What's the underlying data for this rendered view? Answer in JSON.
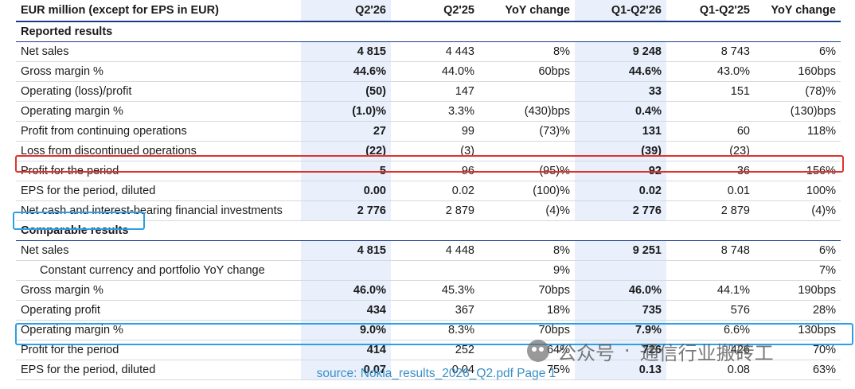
{
  "header": {
    "label": "EUR million (except for EPS in EUR)",
    "columns": [
      "Q2'26",
      "Q2'25",
      "YoY change",
      "Q1-Q2'26",
      "Q1-Q2'25",
      "YoY change"
    ]
  },
  "reported": {
    "title": "Reported results",
    "rows": [
      {
        "label": "Net sales",
        "values": [
          "4 815",
          "4 443",
          "8%",
          "9 248",
          "8 743",
          "6%"
        ]
      },
      {
        "label": "Gross margin %",
        "values": [
          "44.6%",
          "44.0%",
          "60bps",
          "44.6%",
          "43.0%",
          "160bps"
        ]
      },
      {
        "label": "Operating (loss)/profit",
        "values": [
          "(50)",
          "147",
          "",
          "33",
          "151",
          "(78)%"
        ]
      },
      {
        "label": "Operating margin %",
        "values": [
          "(1.0)%",
          "3.3%",
          "(430)bps",
          "0.4%",
          "",
          "(130)bps"
        ]
      },
      {
        "label": "Profit from continuing operations",
        "values": [
          "27",
          "99",
          "(73)%",
          "131",
          "60",
          "118%"
        ]
      },
      {
        "label": "Loss from discontinued operations",
        "values": [
          "(22)",
          "(3)",
          "",
          "(39)",
          "(23)",
          ""
        ]
      },
      {
        "label": "Profit for the period",
        "values": [
          "5",
          "96",
          "(95)%",
          "92",
          "36",
          "156%"
        ]
      },
      {
        "label": "EPS for the period, diluted",
        "values": [
          "0.00",
          "0.02",
          "(100)%",
          "0.02",
          "0.01",
          "100%"
        ]
      },
      {
        "label": "Net cash and interest-bearing financial investments",
        "values": [
          "2 776",
          "2 879",
          "(4)%",
          "2 776",
          "2 879",
          "(4)%"
        ]
      }
    ]
  },
  "comparable": {
    "title": "Comparable results",
    "rows": [
      {
        "label": "Net sales",
        "values": [
          "4 815",
          "4 448",
          "8%",
          "9 251",
          "8 748",
          "6%"
        ]
      },
      {
        "label": "Constant currency and portfolio YoY change",
        "values": [
          "",
          "",
          "9%",
          "",
          "",
          "7%"
        ],
        "indent": true
      },
      {
        "label": "Gross margin %",
        "values": [
          "46.0%",
          "45.3%",
          "70bps",
          "46.0%",
          "44.1%",
          "190bps"
        ]
      },
      {
        "label": "Operating profit",
        "values": [
          "434",
          "367",
          "18%",
          "735",
          "576",
          "28%"
        ]
      },
      {
        "label": "Operating margin %",
        "values": [
          "9.0%",
          "8.3%",
          "70bps",
          "7.9%",
          "6.6%",
          "130bps"
        ]
      },
      {
        "label": "Profit for the period",
        "values": [
          "414",
          "252",
          "64%",
          "726",
          "426",
          "70%"
        ]
      },
      {
        "label": "EPS for the period, diluted",
        "values": [
          "0.07",
          "0.04",
          "75%",
          "0.13",
          "0.08",
          "63%"
        ]
      }
    ]
  },
  "source": "source: Nokia_results_2026_Q2.pdf Page 1",
  "watermark": {
    "part1": "公众号",
    "sep": "·",
    "part2": "通信行业搬砖工"
  },
  "colors": {
    "shade": "#e9f0fb",
    "rule": "#1b3b8a",
    "highlight_red": "#e0332e",
    "highlight_blue": "#2aa0e6",
    "source_text": "#3a8fc8"
  }
}
